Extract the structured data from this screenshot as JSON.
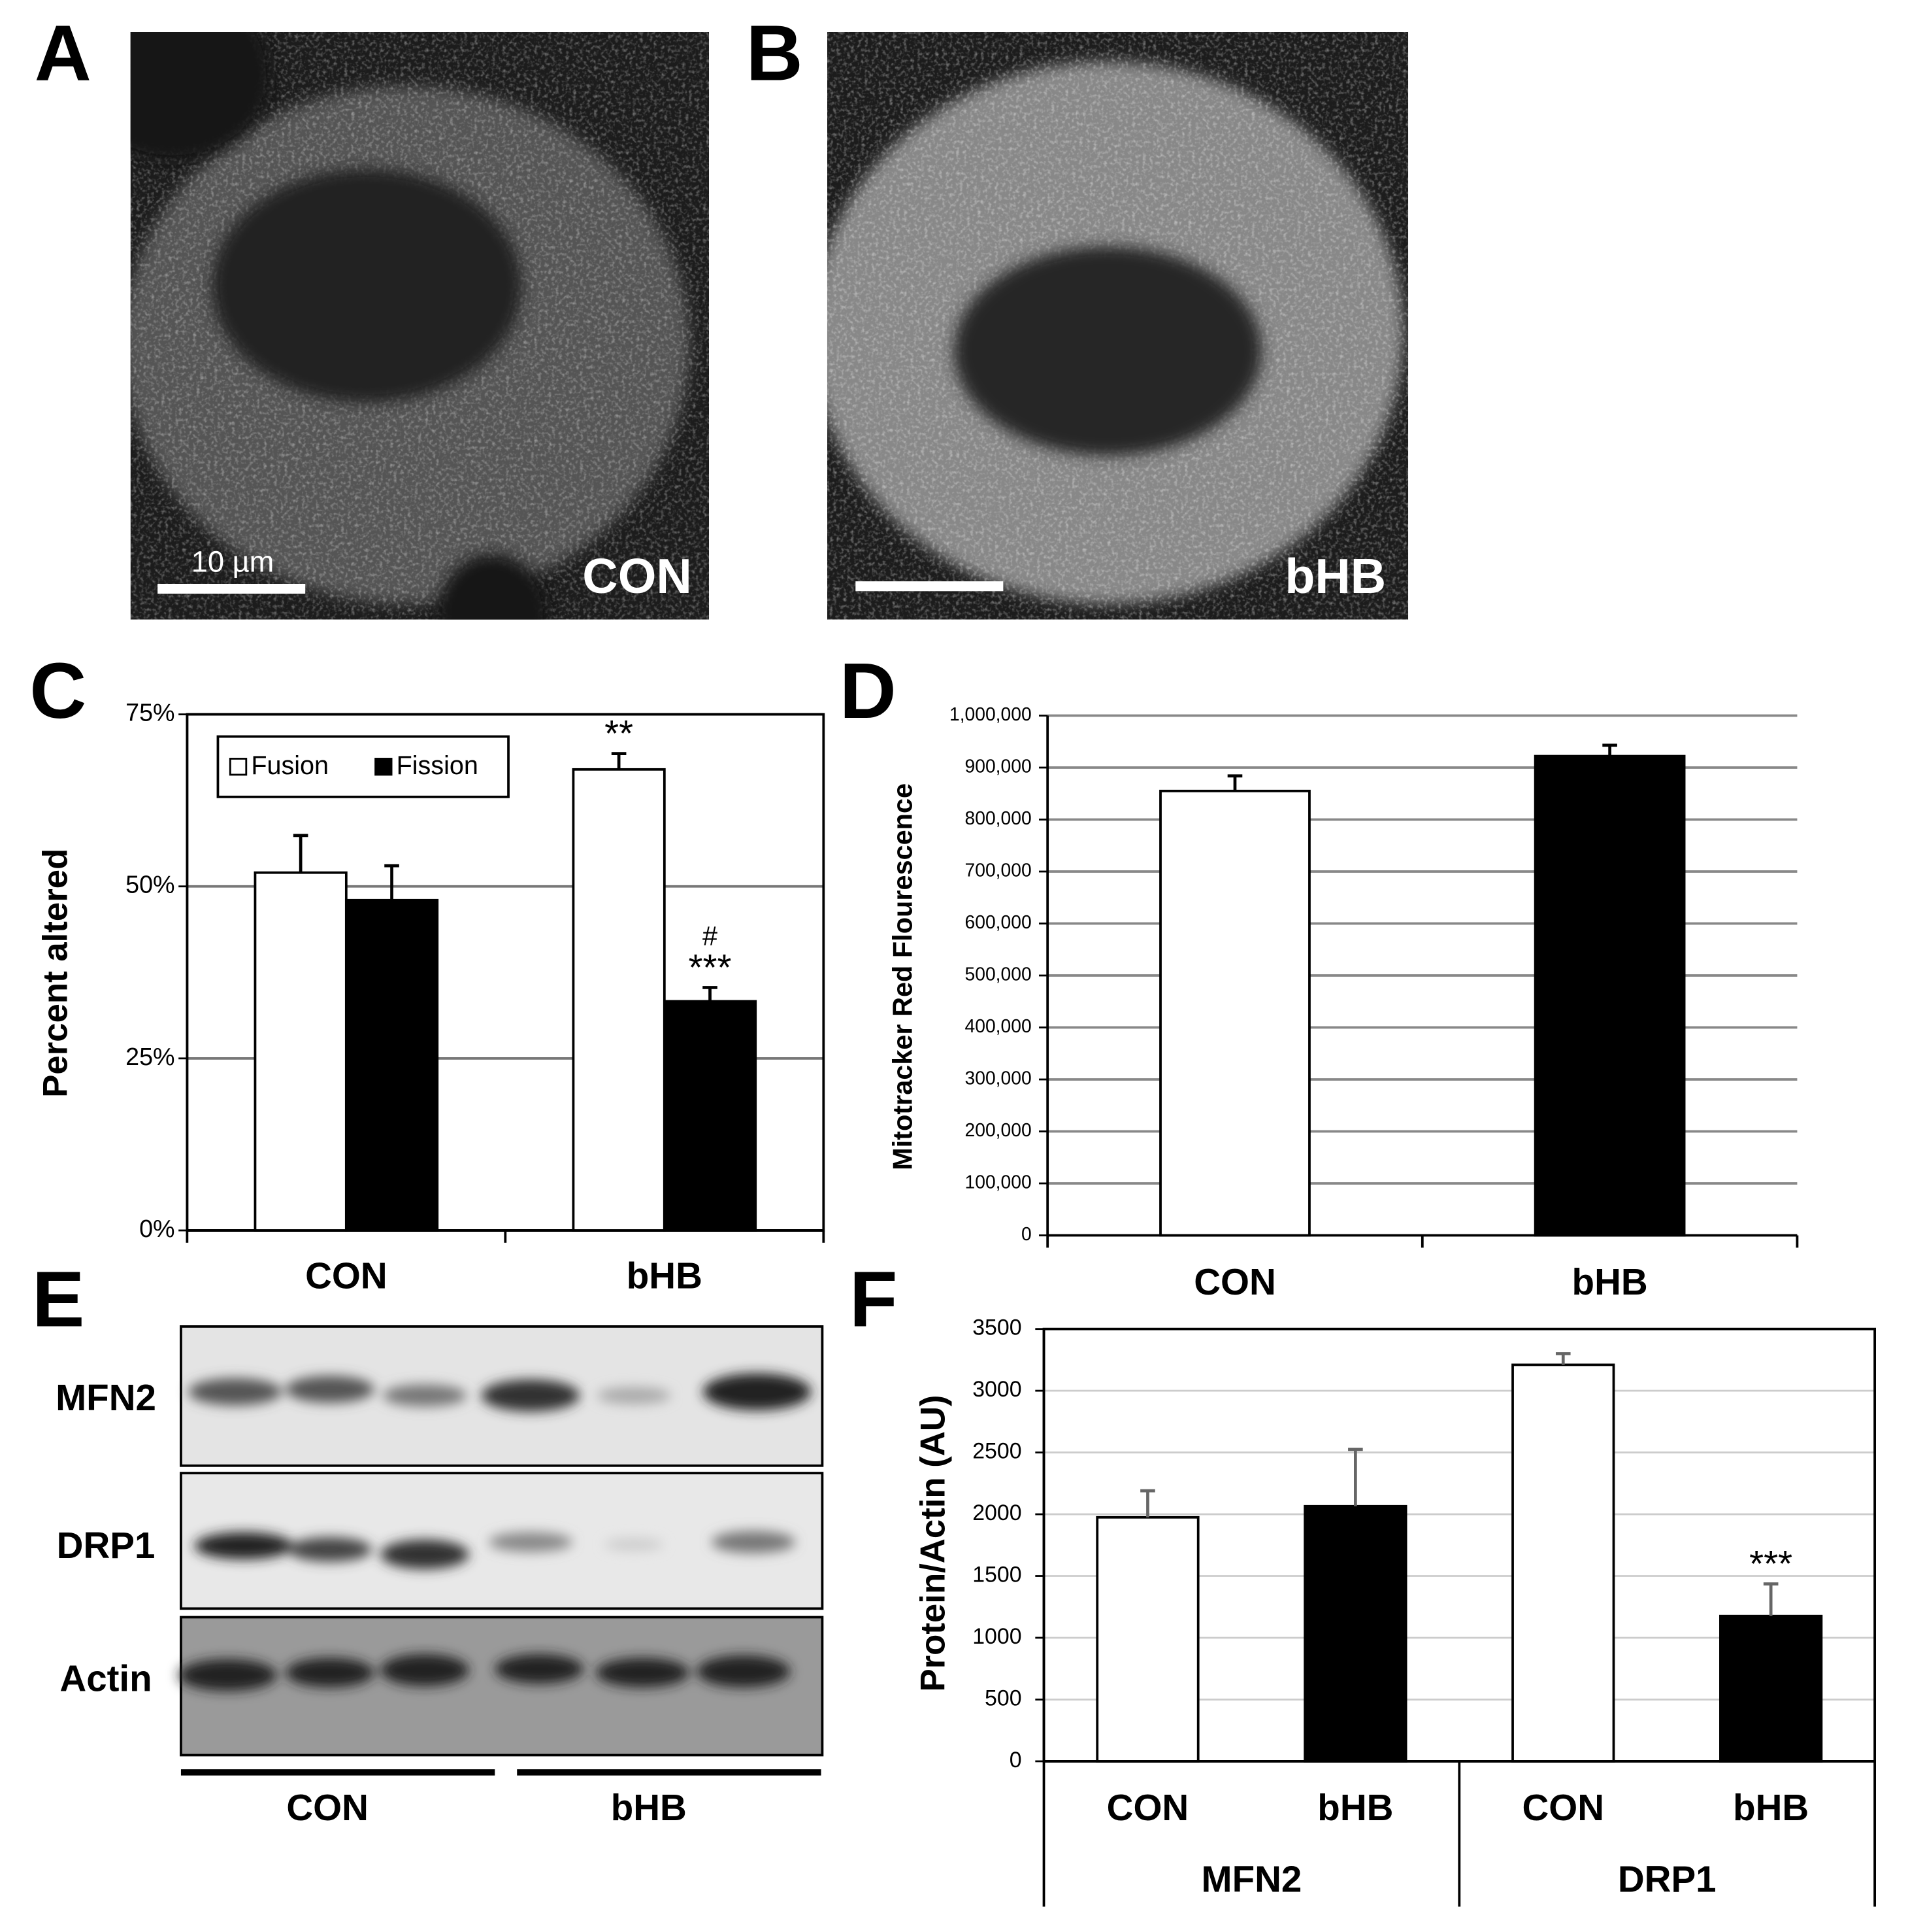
{
  "panel_labels": [
    "A",
    "B",
    "C",
    "D",
    "E",
    "F"
  ],
  "images": [
    {
      "label": "CON",
      "scale_bar": "10 µm"
    },
    {
      "label": "bHB"
    }
  ],
  "blot": {
    "rows": [
      "MFN2",
      "DRP1",
      "Actin"
    ],
    "groups": [
      "CON",
      "bHB"
    ]
  },
  "chart_data": [
    {
      "type": "bar",
      "y_label": "Percent altered",
      "categories": [
        "CON",
        "bHB"
      ],
      "series": [
        {
          "name": "Fusion",
          "color": "#ffffff",
          "values": [
            52,
            67
          ],
          "errors": [
            5.4,
            2.3
          ],
          "annotations": [
            [],
            [
              "**"
            ]
          ]
        },
        {
          "name": "Fission",
          "color": "#000000",
          "values": [
            48,
            33.3
          ],
          "errors": [
            5,
            2
          ],
          "annotations": [
            [],
            [
              "#",
              "***"
            ]
          ]
        }
      ],
      "ylim": [
        0,
        75
      ],
      "yticks": [
        {
          "value": 0,
          "label": "0%"
        },
        {
          "value": 25,
          "label": "25%"
        },
        {
          "value": 50,
          "label": "50%"
        },
        {
          "value": 75,
          "label": "75%"
        }
      ],
      "grid": true,
      "legend": "top-left"
    },
    {
      "type": "bar",
      "y_label": "Mitotracker Red Flourescence",
      "categories": [
        "CON",
        "bHB"
      ],
      "series": [
        {
          "colors": [
            "#ffffff",
            "#000000"
          ],
          "values": [
            855000,
            922000
          ],
          "errors": [
            29000,
            21000
          ]
        }
      ],
      "ylim": [
        0,
        1000000
      ],
      "yticks": [
        0,
        {
          "value": 100000,
          "label": "100,000"
        },
        {
          "value": 200000,
          "label": "200,000"
        },
        {
          "value": 300000,
          "label": "300,000"
        },
        {
          "value": 400000,
          "label": "400,000"
        },
        {
          "value": 500000,
          "label": "500,000"
        },
        {
          "value": 600000,
          "label": "600,000"
        },
        {
          "value": 700000,
          "label": "700,000"
        },
        {
          "value": 800000,
          "label": "800,000"
        },
        {
          "value": 900000,
          "label": "900,000"
        },
        {
          "value": 1000000,
          "label": "1,000,000"
        }
      ],
      "grid": true
    },
    {
      "type": "bar",
      "y_label": "Protein/Actin (AU)",
      "categories": [
        "CON",
        "bHB",
        "CON",
        "bHB"
      ],
      "groups": [
        "MFN2",
        "DRP1"
      ],
      "series": [
        {
          "colors": [
            "#ffffff",
            "#000000",
            "#ffffff",
            "#000000"
          ],
          "values": [
            1975,
            2065,
            3210,
            1176
          ],
          "errors": [
            215,
            460,
            90,
            260
          ],
          "annotations": [
            [],
            [],
            [],
            [
              "***"
            ]
          ]
        }
      ],
      "ylim": [
        0,
        3500
      ],
      "yticks": [
        0,
        500,
        1000,
        1500,
        2000,
        2500,
        3000,
        3500
      ],
      "grid": true
    }
  ]
}
